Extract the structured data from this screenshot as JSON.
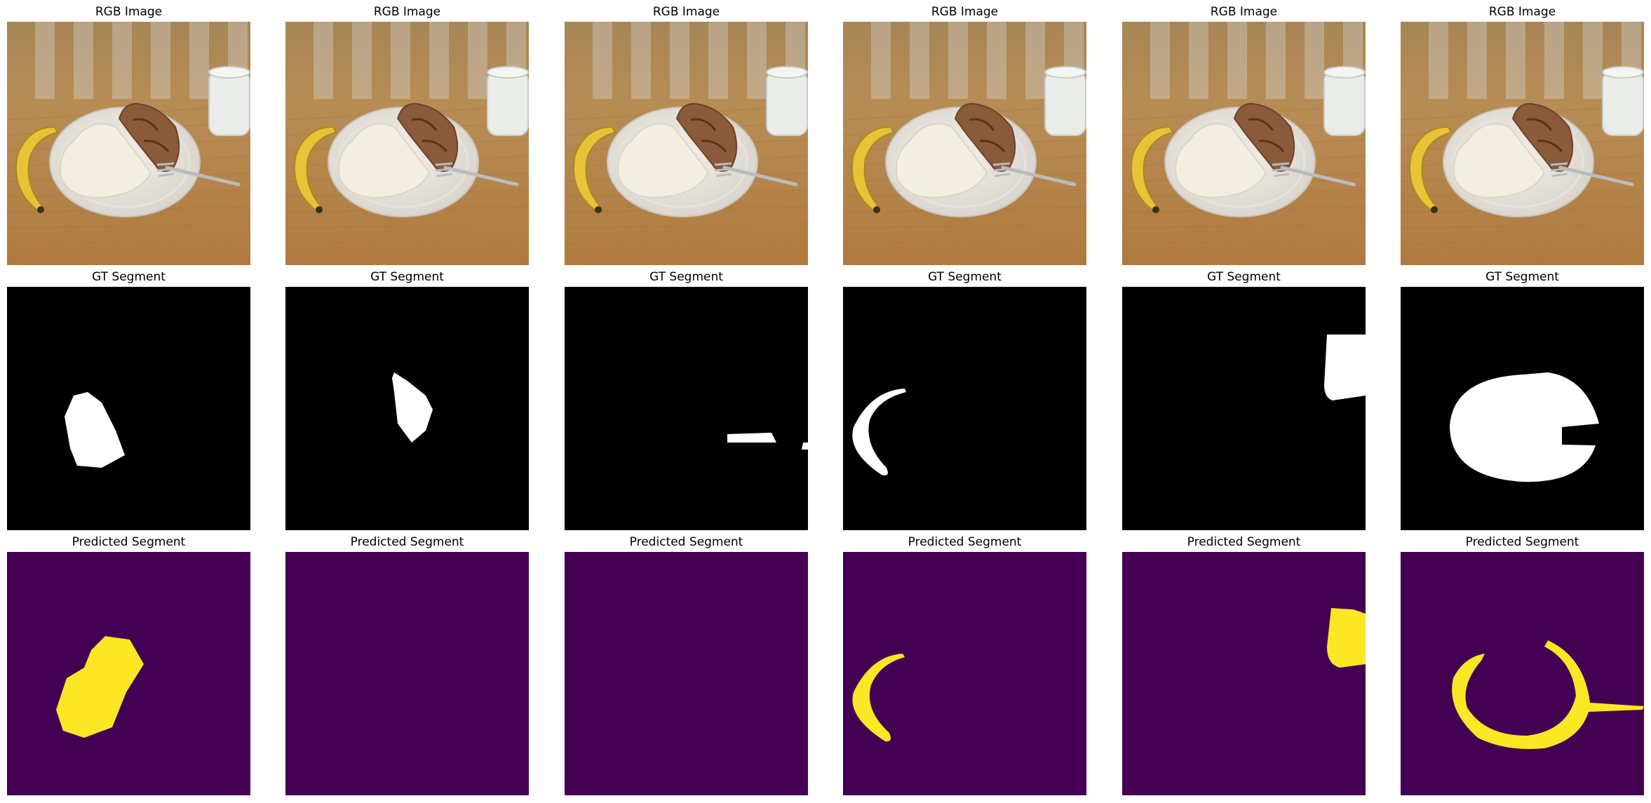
{
  "titles": {
    "rgb": "RGB Image",
    "gt": "GT Segment",
    "pred": "Predicted Segment"
  },
  "colors": {
    "gt_background": "#000000",
    "gt_foreground": "#ffffff",
    "pred_background": "#440154",
    "pred_foreground": "#fde725"
  },
  "rows": [
    {
      "row": "rgb",
      "label": "RGB Image",
      "panel_count": 6
    },
    {
      "row": "gt",
      "label": "GT Segment",
      "panel_count": 6
    },
    {
      "row": "pred",
      "label": "Predicted Segment",
      "panel_count": 6
    }
  ],
  "columns": [
    {
      "gt_object": "rice",
      "pred_result": "rice region (oversized)"
    },
    {
      "gt_object": "chicken",
      "pred_result": "empty"
    },
    {
      "gt_object": "fork",
      "pred_result": "empty"
    },
    {
      "gt_object": "banana",
      "pred_result": "banana"
    },
    {
      "gt_object": "glass of milk",
      "pred_result": "glass"
    },
    {
      "gt_object": "plate",
      "pred_result": "plate rim + fork"
    }
  ]
}
